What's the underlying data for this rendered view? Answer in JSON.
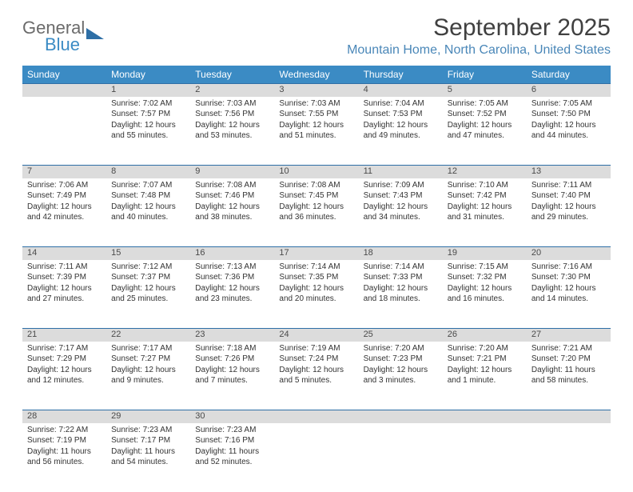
{
  "brand": {
    "word1": "General",
    "word2": "Blue"
  },
  "title": "September 2025",
  "location": "Mountain Home, North Carolina, United States",
  "colors": {
    "header_bg": "#3b8bc4",
    "daynum_bg": "#dcdcdc",
    "rule": "#2e6fa6",
    "text": "#333333",
    "location": "#4a87b8"
  },
  "weekdays": [
    "Sunday",
    "Monday",
    "Tuesday",
    "Wednesday",
    "Thursday",
    "Friday",
    "Saturday"
  ],
  "weeks": [
    [
      null,
      {
        "n": "1",
        "sr": "Sunrise: 7:02 AM",
        "ss": "Sunset: 7:57 PM",
        "dl": "Daylight: 12 hours and 55 minutes."
      },
      {
        "n": "2",
        "sr": "Sunrise: 7:03 AM",
        "ss": "Sunset: 7:56 PM",
        "dl": "Daylight: 12 hours and 53 minutes."
      },
      {
        "n": "3",
        "sr": "Sunrise: 7:03 AM",
        "ss": "Sunset: 7:55 PM",
        "dl": "Daylight: 12 hours and 51 minutes."
      },
      {
        "n": "4",
        "sr": "Sunrise: 7:04 AM",
        "ss": "Sunset: 7:53 PM",
        "dl": "Daylight: 12 hours and 49 minutes."
      },
      {
        "n": "5",
        "sr": "Sunrise: 7:05 AM",
        "ss": "Sunset: 7:52 PM",
        "dl": "Daylight: 12 hours and 47 minutes."
      },
      {
        "n": "6",
        "sr": "Sunrise: 7:05 AM",
        "ss": "Sunset: 7:50 PM",
        "dl": "Daylight: 12 hours and 44 minutes."
      }
    ],
    [
      {
        "n": "7",
        "sr": "Sunrise: 7:06 AM",
        "ss": "Sunset: 7:49 PM",
        "dl": "Daylight: 12 hours and 42 minutes."
      },
      {
        "n": "8",
        "sr": "Sunrise: 7:07 AM",
        "ss": "Sunset: 7:48 PM",
        "dl": "Daylight: 12 hours and 40 minutes."
      },
      {
        "n": "9",
        "sr": "Sunrise: 7:08 AM",
        "ss": "Sunset: 7:46 PM",
        "dl": "Daylight: 12 hours and 38 minutes."
      },
      {
        "n": "10",
        "sr": "Sunrise: 7:08 AM",
        "ss": "Sunset: 7:45 PM",
        "dl": "Daylight: 12 hours and 36 minutes."
      },
      {
        "n": "11",
        "sr": "Sunrise: 7:09 AM",
        "ss": "Sunset: 7:43 PM",
        "dl": "Daylight: 12 hours and 34 minutes."
      },
      {
        "n": "12",
        "sr": "Sunrise: 7:10 AM",
        "ss": "Sunset: 7:42 PM",
        "dl": "Daylight: 12 hours and 31 minutes."
      },
      {
        "n": "13",
        "sr": "Sunrise: 7:11 AM",
        "ss": "Sunset: 7:40 PM",
        "dl": "Daylight: 12 hours and 29 minutes."
      }
    ],
    [
      {
        "n": "14",
        "sr": "Sunrise: 7:11 AM",
        "ss": "Sunset: 7:39 PM",
        "dl": "Daylight: 12 hours and 27 minutes."
      },
      {
        "n": "15",
        "sr": "Sunrise: 7:12 AM",
        "ss": "Sunset: 7:37 PM",
        "dl": "Daylight: 12 hours and 25 minutes."
      },
      {
        "n": "16",
        "sr": "Sunrise: 7:13 AM",
        "ss": "Sunset: 7:36 PM",
        "dl": "Daylight: 12 hours and 23 minutes."
      },
      {
        "n": "17",
        "sr": "Sunrise: 7:14 AM",
        "ss": "Sunset: 7:35 PM",
        "dl": "Daylight: 12 hours and 20 minutes."
      },
      {
        "n": "18",
        "sr": "Sunrise: 7:14 AM",
        "ss": "Sunset: 7:33 PM",
        "dl": "Daylight: 12 hours and 18 minutes."
      },
      {
        "n": "19",
        "sr": "Sunrise: 7:15 AM",
        "ss": "Sunset: 7:32 PM",
        "dl": "Daylight: 12 hours and 16 minutes."
      },
      {
        "n": "20",
        "sr": "Sunrise: 7:16 AM",
        "ss": "Sunset: 7:30 PM",
        "dl": "Daylight: 12 hours and 14 minutes."
      }
    ],
    [
      {
        "n": "21",
        "sr": "Sunrise: 7:17 AM",
        "ss": "Sunset: 7:29 PM",
        "dl": "Daylight: 12 hours and 12 minutes."
      },
      {
        "n": "22",
        "sr": "Sunrise: 7:17 AM",
        "ss": "Sunset: 7:27 PM",
        "dl": "Daylight: 12 hours and 9 minutes."
      },
      {
        "n": "23",
        "sr": "Sunrise: 7:18 AM",
        "ss": "Sunset: 7:26 PM",
        "dl": "Daylight: 12 hours and 7 minutes."
      },
      {
        "n": "24",
        "sr": "Sunrise: 7:19 AM",
        "ss": "Sunset: 7:24 PM",
        "dl": "Daylight: 12 hours and 5 minutes."
      },
      {
        "n": "25",
        "sr": "Sunrise: 7:20 AM",
        "ss": "Sunset: 7:23 PM",
        "dl": "Daylight: 12 hours and 3 minutes."
      },
      {
        "n": "26",
        "sr": "Sunrise: 7:20 AM",
        "ss": "Sunset: 7:21 PM",
        "dl": "Daylight: 12 hours and 1 minute."
      },
      {
        "n": "27",
        "sr": "Sunrise: 7:21 AM",
        "ss": "Sunset: 7:20 PM",
        "dl": "Daylight: 11 hours and 58 minutes."
      }
    ],
    [
      {
        "n": "28",
        "sr": "Sunrise: 7:22 AM",
        "ss": "Sunset: 7:19 PM",
        "dl": "Daylight: 11 hours and 56 minutes."
      },
      {
        "n": "29",
        "sr": "Sunrise: 7:23 AM",
        "ss": "Sunset: 7:17 PM",
        "dl": "Daylight: 11 hours and 54 minutes."
      },
      {
        "n": "30",
        "sr": "Sunrise: 7:23 AM",
        "ss": "Sunset: 7:16 PM",
        "dl": "Daylight: 11 hours and 52 minutes."
      },
      null,
      null,
      null,
      null
    ]
  ]
}
